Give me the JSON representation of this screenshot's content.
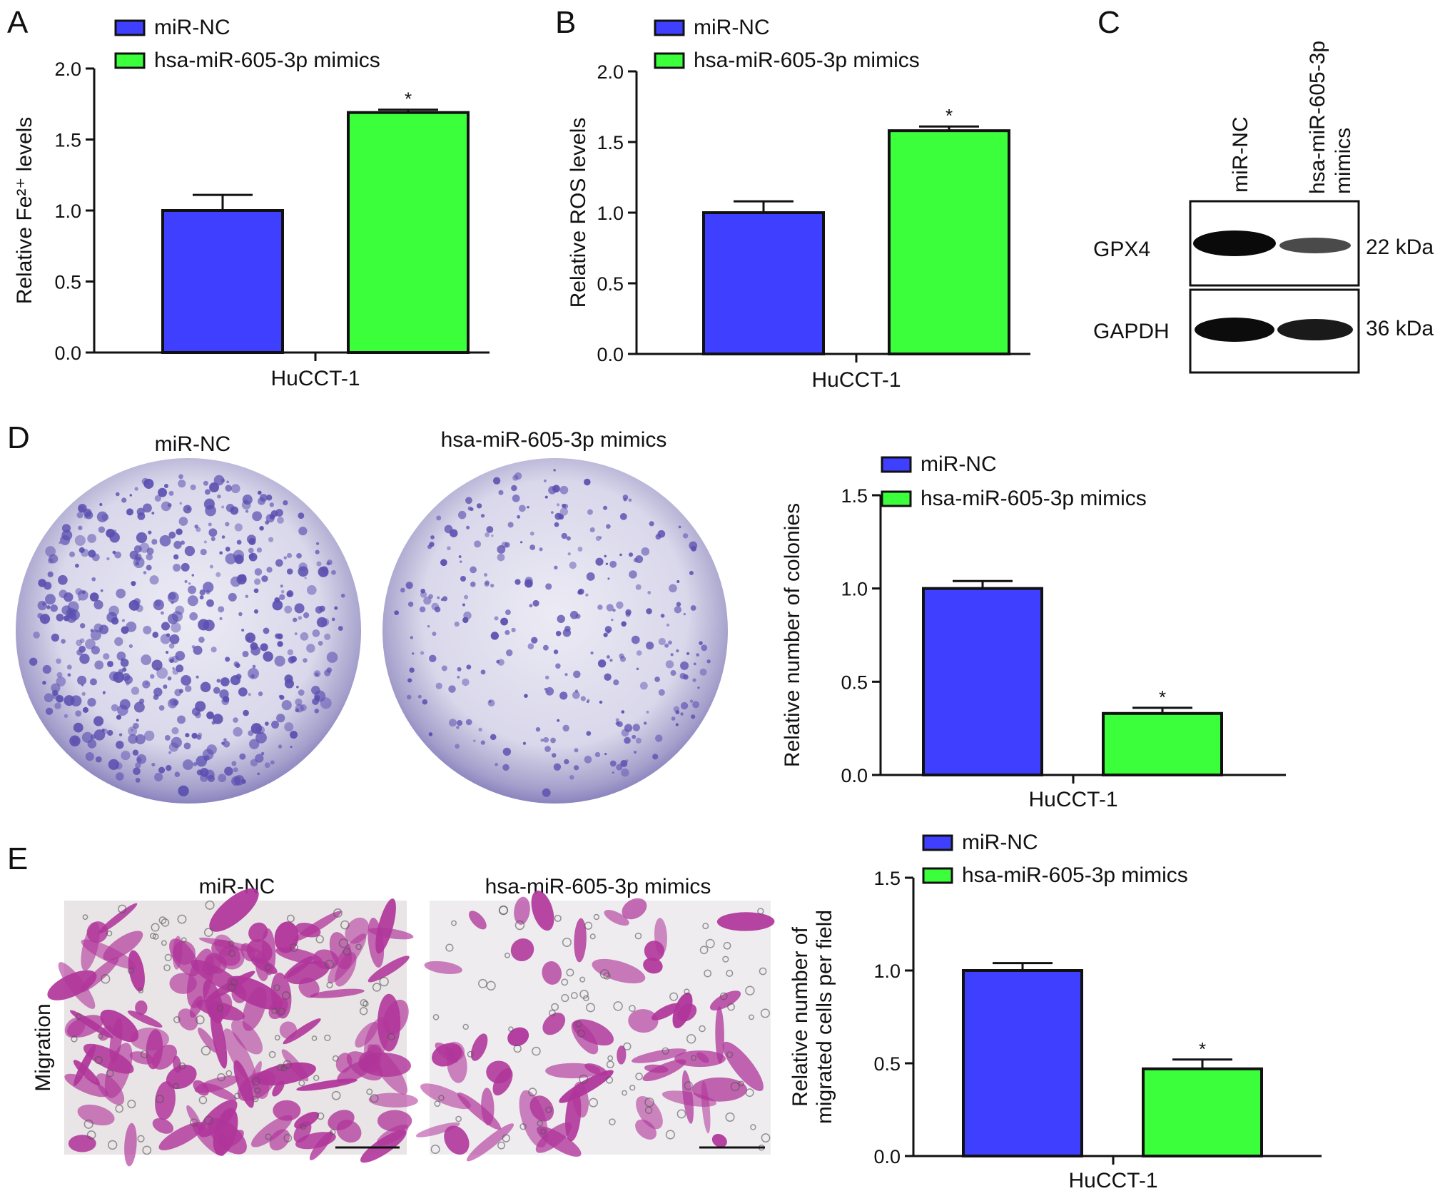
{
  "colors": {
    "series_nc": "#3f3fff",
    "series_mimic": "#3cff3c",
    "axis": "#111111",
    "stain_dish": "#5a4fb0",
    "stain_cells": "#b0359a"
  },
  "panels": {
    "A": "A",
    "B": "B",
    "C": "C",
    "D": "D",
    "E": "E"
  },
  "legend": {
    "nc": "miR-NC",
    "mimic": "hsa-miR-605-3p mimics"
  },
  "western": {
    "lanes": [
      "miR-NC",
      "hsa-miR-605-3p",
      "mimics"
    ],
    "rows": [
      {
        "protein": "GPX4",
        "size": "22 kDa",
        "band_intensity": [
          1.0,
          0.45
        ]
      },
      {
        "protein": "GAPDH",
        "size": "36 kDa",
        "band_intensity": [
          1.0,
          0.9
        ]
      }
    ]
  },
  "images": {
    "dish_titles": [
      "miR-NC",
      "hsa-miR-605-3p mimics"
    ],
    "migration_titles": [
      "miR-NC",
      "hsa-miR-605-3p mimics"
    ],
    "migration_row_label": "Migration"
  },
  "chart_data": [
    {
      "panel": "A",
      "type": "bar",
      "categories": [
        "HuCCT-1"
      ],
      "series": [
        {
          "name": "miR-NC",
          "values": [
            1.0
          ],
          "error": [
            0.11
          ]
        },
        {
          "name": "hsa-miR-605-3p mimics",
          "values": [
            1.69
          ],
          "error": [
            0.02
          ],
          "significance": "*"
        }
      ],
      "xlabel": "HuCCT-1",
      "ylabel": "Relative Fe²⁺ levels",
      "ylim": [
        0,
        2.0
      ],
      "yticks": [
        "0.0",
        "0.5",
        "1.0",
        "1.5",
        "2.0"
      ]
    },
    {
      "panel": "B",
      "type": "bar",
      "categories": [
        "HuCCT-1"
      ],
      "series": [
        {
          "name": "miR-NC",
          "values": [
            1.0
          ],
          "error": [
            0.08
          ]
        },
        {
          "name": "hsa-miR-605-3p mimics",
          "values": [
            1.58
          ],
          "error": [
            0.03
          ],
          "significance": "*"
        }
      ],
      "xlabel": "HuCCT-1",
      "ylabel": "Relative ROS levels",
      "ylim": [
        0,
        2.0
      ],
      "yticks": [
        "0.0",
        "0.5",
        "1.0",
        "1.5",
        "2.0"
      ]
    },
    {
      "panel": "D",
      "type": "bar",
      "categories": [
        "HuCCT-1"
      ],
      "series": [
        {
          "name": "miR-NC",
          "values": [
            1.0
          ],
          "error": [
            0.04
          ]
        },
        {
          "name": "hsa-miR-605-3p mimics",
          "values": [
            0.33
          ],
          "error": [
            0.03
          ],
          "significance": "*"
        }
      ],
      "xlabel": "HuCCT-1",
      "ylabel": "Relative number of colonies",
      "ylim": [
        0,
        1.5
      ],
      "yticks": [
        "0.0",
        "0.5",
        "1.0",
        "1.5"
      ]
    },
    {
      "panel": "E",
      "type": "bar",
      "categories": [
        "HuCCT-1"
      ],
      "series": [
        {
          "name": "miR-NC",
          "values": [
            1.0
          ],
          "error": [
            0.04
          ]
        },
        {
          "name": "hsa-miR-605-3p mimics",
          "values": [
            0.47
          ],
          "error": [
            0.05
          ],
          "significance": "*"
        }
      ],
      "xlabel": "HuCCT-1",
      "ylabel": [
        "Relative number of",
        "migrated cells per field"
      ],
      "ylim": [
        0,
        1.5
      ],
      "yticks": [
        "0.0",
        "0.5",
        "1.0",
        "1.5"
      ]
    }
  ]
}
